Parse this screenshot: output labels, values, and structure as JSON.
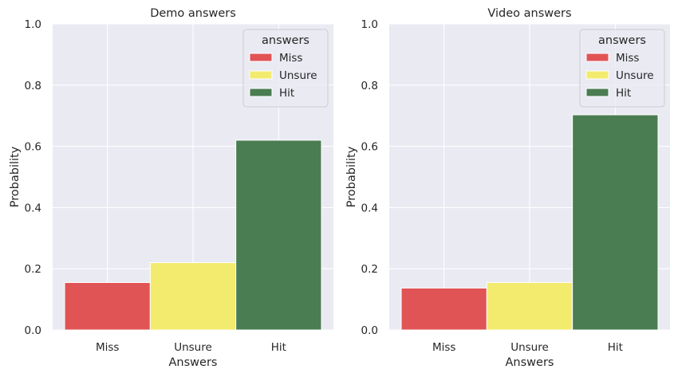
{
  "chart_data": [
    {
      "type": "bar",
      "title": "Demo answers",
      "xlabel": "Answers",
      "ylabel": "Probability",
      "categories": [
        "Miss",
        "Unsure",
        "Hit"
      ],
      "values": [
        0.155,
        0.22,
        0.62
      ],
      "ylim": [
        0,
        1.0
      ],
      "yticks": [
        "0.0",
        "0.2",
        "0.4",
        "0.6",
        "0.8",
        "1.0"
      ],
      "grid": true,
      "legend": {
        "title": "answers",
        "placement": "top-right",
        "entries": [
          "Miss",
          "Unsure",
          "Hit"
        ]
      }
    },
    {
      "type": "bar",
      "title": "Video answers",
      "xlabel": "Answers",
      "ylabel": "Probability",
      "categories": [
        "Miss",
        "Unsure",
        "Hit"
      ],
      "values": [
        0.137,
        0.155,
        0.703
      ],
      "ylim": [
        0,
        1.0
      ],
      "yticks": [
        "0.0",
        "0.2",
        "0.4",
        "0.6",
        "0.8",
        "1.0"
      ],
      "grid": true,
      "legend": {
        "title": "answers",
        "placement": "top-right",
        "entries": [
          "Miss",
          "Unsure",
          "Hit"
        ]
      }
    }
  ],
  "colors": {
    "Miss": "#e05455",
    "Unsure": "#f3eb6e",
    "Hit": "#4a7d51",
    "plot_bg": "#eaeaf2",
    "grid": "#ffffff"
  }
}
